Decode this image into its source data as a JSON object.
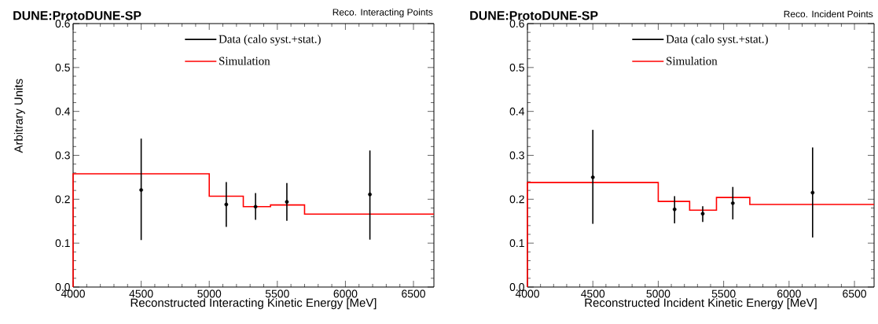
{
  "chart_data": [
    {
      "type": "step",
      "title": "DUNE:ProtoDUNE-SP",
      "subtitle": "Reco. Interacting Points",
      "xlabel": "Reconstructed Interacting Kinetic Energy [MeV]",
      "ylabel": "Arbitrary Units",
      "xlim": [
        4000,
        6650
      ],
      "ylim": [
        0,
        0.6
      ],
      "xticks": [
        4000,
        4500,
        5000,
        5500,
        6000,
        6500
      ],
      "yticks": [
        {
          "value": 0,
          "label": "0.0"
        },
        0.1,
        0.2,
        0.3,
        0.4,
        0.5,
        0.6
      ],
      "legend": "top",
      "grid": false,
      "series": [
        {
          "name": "Data (calo syst.+stat.)",
          "type": "scatter",
          "marker": "circle",
          "color": "#000000",
          "x": [
            4500,
            5125,
            5340,
            5570,
            6180
          ],
          "values": [
            0.221,
            0.188,
            0.183,
            0.194,
            0.211
          ],
          "errors": [
            [
              0.107,
              0.338
            ],
            [
              0.137,
              0.239
            ],
            [
              0.153,
              0.214
            ],
            [
              0.151,
              0.237
            ],
            [
              0.108,
              0.311
            ]
          ]
        },
        {
          "name": "Simulation",
          "color": "#ff0000",
          "x": [
            4000,
            4000,
            5000,
            5250,
            5450,
            5700,
            6650
          ],
          "values": [
            0,
            0.258,
            0.207,
            0.183,
            0.187,
            0.166,
            0.166
          ]
        }
      ]
    },
    {
      "type": "step",
      "title": "DUNE:ProtoDUNE-SP",
      "subtitle": "Reco. Incident Points",
      "xlabel": "Reconstructed Incident Kinetic Energy [MeV]",
      "xlim": [
        4000,
        6650
      ],
      "ylim": [
        0,
        0.6
      ],
      "xticks": [
        4000,
        4500,
        5000,
        5500,
        6000,
        6500
      ],
      "yticks": [
        {
          "value": 0,
          "label": "0.0"
        },
        0.1,
        0.2,
        0.3,
        0.4,
        0.5,
        0.6
      ],
      "legend": "top",
      "grid": false,
      "series": [
        {
          "name": "Data (calo syst.+stat.)",
          "type": "scatter",
          "marker": "circle",
          "color": "#000000",
          "x": [
            4500,
            5125,
            5340,
            5570,
            6180
          ],
          "values": [
            0.25,
            0.177,
            0.167,
            0.191,
            0.215
          ],
          "errors": [
            [
              0.144,
              0.358
            ],
            [
              0.145,
              0.207
            ],
            [
              0.148,
              0.184
            ],
            [
              0.154,
              0.228
            ],
            [
              0.113,
              0.318
            ]
          ]
        },
        {
          "name": "Simulation",
          "color": "#ff0000",
          "x": [
            4000,
            4000,
            5000,
            5240,
            5445,
            5700,
            6650
          ],
          "values": [
            0,
            0.238,
            0.195,
            0.175,
            0.204,
            0.188,
            0.188
          ]
        }
      ]
    }
  ]
}
